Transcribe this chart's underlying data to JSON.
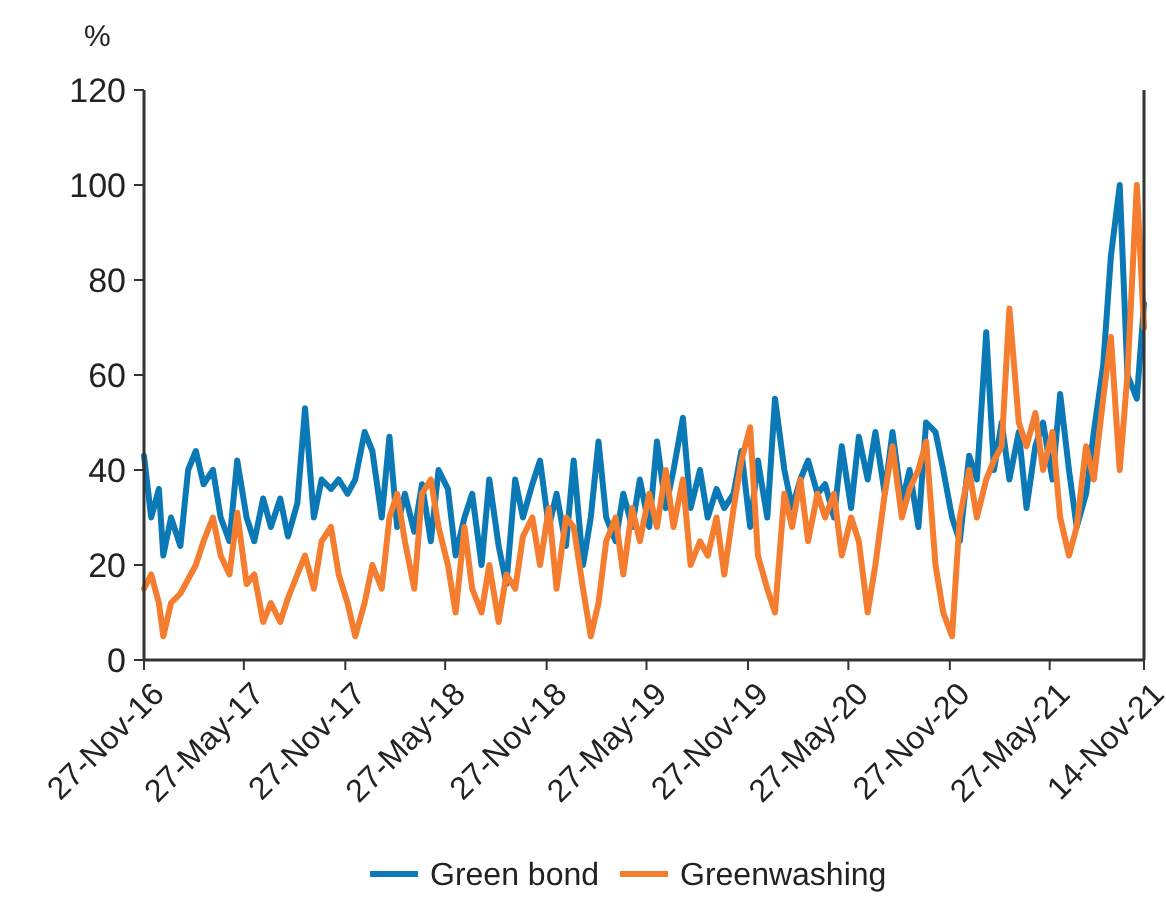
{
  "chart_data": {
    "type": "line",
    "ylabel": "%",
    "legend": "bottom",
    "grid": false,
    "marker": "none",
    "line_style": "solid",
    "x": [
      "2016-11-27",
      "2016-12-10",
      "2016-12-24",
      "2017-01-01",
      "2017-01-15",
      "2017-02-01",
      "2017-02-15",
      "2017-03-01",
      "2017-03-15",
      "2017-04-01",
      "2017-04-15",
      "2017-05-01",
      "2017-05-15",
      "2017-06-01",
      "2017-06-15",
      "2017-07-01",
      "2017-07-15",
      "2017-08-01",
      "2017-08-15",
      "2017-09-01",
      "2017-09-15",
      "2017-10-01",
      "2017-10-15",
      "2017-11-01",
      "2017-11-15",
      "2017-12-01",
      "2017-12-15",
      "2018-01-01",
      "2018-01-15",
      "2018-02-01",
      "2018-02-15",
      "2018-03-01",
      "2018-03-15",
      "2018-04-01",
      "2018-04-15",
      "2018-05-01",
      "2018-05-15",
      "2018-06-01",
      "2018-06-15",
      "2018-07-01",
      "2018-07-15",
      "2018-08-01",
      "2018-08-15",
      "2018-09-01",
      "2018-09-15",
      "2018-10-01",
      "2018-10-15",
      "2018-11-01",
      "2018-11-15",
      "2018-12-01",
      "2018-12-15",
      "2019-01-01",
      "2019-01-15",
      "2019-02-01",
      "2019-02-15",
      "2019-03-01",
      "2019-03-15",
      "2019-04-01",
      "2019-04-15",
      "2019-05-01",
      "2019-05-15",
      "2019-06-01",
      "2019-06-15",
      "2019-07-01",
      "2019-07-15",
      "2019-08-01",
      "2019-08-15",
      "2019-09-01",
      "2019-09-15",
      "2019-10-01",
      "2019-10-15",
      "2019-11-01",
      "2019-11-15",
      "2019-12-01",
      "2019-12-15",
      "2020-01-01",
      "2020-01-15",
      "2020-02-01",
      "2020-02-15",
      "2020-03-01",
      "2020-03-15",
      "2020-04-01",
      "2020-04-15",
      "2020-05-01",
      "2020-05-15",
      "2020-06-01",
      "2020-06-15",
      "2020-07-01",
      "2020-07-15",
      "2020-08-01",
      "2020-08-15",
      "2020-09-01",
      "2020-09-15",
      "2020-10-01",
      "2020-10-15",
      "2020-11-01",
      "2020-11-15",
      "2020-12-01",
      "2020-12-15",
      "2021-01-01",
      "2021-01-15",
      "2021-02-01",
      "2021-02-15",
      "2021-03-01",
      "2021-03-15",
      "2021-04-01",
      "2021-04-15",
      "2021-05-01",
      "2021-05-15",
      "2021-06-01",
      "2021-06-15",
      "2021-07-01",
      "2021-07-15",
      "2021-08-01",
      "2021-08-15",
      "2021-09-01",
      "2021-09-15",
      "2021-10-01",
      "2021-10-15",
      "2021-11-01",
      "2021-11-14"
    ],
    "xlim": [
      "2016-11-27",
      "2021-11-14"
    ],
    "xticks": [
      {
        "value": "2016-11-27",
        "label": "27-Nov-16"
      },
      {
        "value": "2017-05-27",
        "label": "27-May-17"
      },
      {
        "value": "2017-11-27",
        "label": "27-Nov-17"
      },
      {
        "value": "2018-05-27",
        "label": "27-May-18"
      },
      {
        "value": "2018-11-27",
        "label": "27-Nov-18"
      },
      {
        "value": "2019-05-27",
        "label": "27-May-19"
      },
      {
        "value": "2019-11-27",
        "label": "27-Nov-19"
      },
      {
        "value": "2020-05-27",
        "label": "27-May-20"
      },
      {
        "value": "2020-11-27",
        "label": "27-Nov-20"
      },
      {
        "value": "2021-05-27",
        "label": "27-May-21"
      },
      {
        "value": "2021-11-14",
        "label": "14-Nov-21"
      }
    ],
    "ylim": [
      0,
      120
    ],
    "yticks": [
      0,
      20,
      40,
      60,
      80,
      100,
      120
    ],
    "series": [
      {
        "name": "Green bond",
        "color": "#0a79b5",
        "values": [
          43,
          30,
          36,
          22,
          30,
          24,
          40,
          44,
          37,
          40,
          30,
          25,
          42,
          30,
          25,
          34,
          28,
          34,
          26,
          33,
          53,
          30,
          38,
          36,
          38,
          35,
          38,
          48,
          44,
          30,
          47,
          28,
          35,
          27,
          37,
          25,
          40,
          36,
          22,
          30,
          35,
          20,
          38,
          24,
          16,
          38,
          30,
          37,
          42,
          28,
          35,
          24,
          42,
          20,
          30,
          46,
          30,
          25,
          35,
          28,
          38,
          28,
          46,
          32,
          40,
          51,
          32,
          40,
          30,
          36,
          32,
          35,
          44,
          28,
          42,
          30,
          55,
          40,
          32,
          38,
          42,
          35,
          37,
          30,
          45,
          32,
          47,
          38,
          48,
          35,
          48,
          33,
          40,
          28,
          50,
          48,
          40,
          30,
          25,
          43,
          38,
          69,
          40,
          50,
          38,
          48,
          32,
          45,
          50,
          38,
          56,
          40,
          28,
          35,
          48,
          62,
          85,
          100,
          60,
          55,
          75
        ]
      },
      {
        "name": "Greenwashing",
        "color": "#f47d30",
        "values": [
          15,
          18,
          12,
          5,
          12,
          14,
          17,
          20,
          25,
          30,
          22,
          18,
          31,
          16,
          18,
          8,
          12,
          8,
          13,
          18,
          22,
          15,
          25,
          28,
          18,
          12,
          5,
          12,
          20,
          15,
          30,
          35,
          25,
          15,
          35,
          38,
          28,
          20,
          10,
          28,
          15,
          10,
          20,
          8,
          18,
          15,
          26,
          30,
          20,
          32,
          15,
          30,
          28,
          15,
          5,
          12,
          25,
          30,
          18,
          32,
          25,
          35,
          28,
          40,
          28,
          38,
          20,
          25,
          22,
          30,
          18,
          32,
          42,
          49,
          22,
          15,
          10,
          35,
          28,
          38,
          25,
          35,
          30,
          35,
          22,
          30,
          25,
          10,
          20,
          35,
          45,
          30,
          36,
          40,
          46,
          20,
          10,
          5,
          30,
          40,
          30,
          38,
          42,
          45,
          74,
          50,
          45,
          52,
          40,
          48,
          30,
          22,
          28,
          45,
          38,
          55,
          68,
          40,
          60,
          100,
          70
        ]
      }
    ]
  }
}
